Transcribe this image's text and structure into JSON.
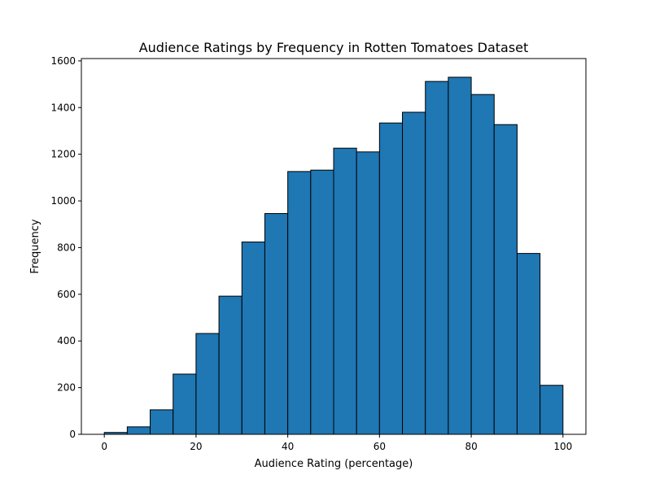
{
  "chart_data": {
    "type": "bar",
    "title": "Audience Ratings by Frequency in Rotten Tomatoes Dataset",
    "xlabel": "Audience Rating (percentage)",
    "ylabel": "Frequency",
    "bin_edges": [
      0,
      5,
      10,
      15,
      20,
      25,
      30,
      35,
      40,
      45,
      50,
      55,
      60,
      65,
      70,
      75,
      80,
      85,
      90,
      95,
      100
    ],
    "values": [
      8,
      32,
      105,
      258,
      432,
      592,
      824,
      946,
      1126,
      1132,
      1226,
      1210,
      1334,
      1380,
      1512,
      1530,
      1456,
      1327,
      775,
      210
    ],
    "xlim": [
      -5,
      105
    ],
    "ylim": [
      0,
      1610
    ],
    "xticks": [
      0,
      20,
      40,
      60,
      80,
      100
    ],
    "yticks": [
      0,
      200,
      400,
      600,
      800,
      1000,
      1200,
      1400,
      1600
    ],
    "bar_color": "#1f77b4",
    "edge_color": "#000000",
    "grid": false,
    "legend": "none"
  }
}
